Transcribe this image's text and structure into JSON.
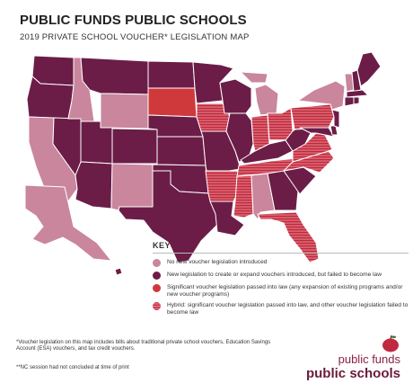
{
  "header": {
    "title": "PUBLIC FUNDS PUBLIC SCHOOLS",
    "subtitle": "2019 PRIVATE SCHOOL VOUCHER* LEGISLATION MAP"
  },
  "colors": {
    "none": "#c9869c",
    "failed": "#6b1d47",
    "passed": "#d0393b",
    "hybrid": "#c0283f",
    "border": "#ffffff"
  },
  "key": {
    "title": "KEY",
    "items": [
      {
        "category": "none",
        "label": "No new voucher legislation introduced"
      },
      {
        "category": "failed",
        "label": "New legislation to create or expand vouchers introduced, but failed to become law"
      },
      {
        "category": "passed",
        "label": "Significant voucher legislation passed into law (any expansion of existing programs and/or new voucher programs)"
      },
      {
        "category": "hybrid",
        "label": "Hybrid: significant voucher legislation passed into law, and other voucher legislation failed to become law"
      }
    ]
  },
  "states": {
    "none": [
      "CA",
      "ID",
      "WY",
      "NM",
      "MI",
      "AL",
      "AK",
      "NY",
      "VT"
    ],
    "passed": [
      "SD"
    ],
    "hybrid": [
      "IA",
      "IN",
      "OH",
      "PA",
      "AR",
      "MS",
      "TN",
      "FL",
      "VA",
      "NC"
    ],
    "failed": [
      "WA",
      "OR",
      "NV",
      "AZ",
      "UT",
      "MT",
      "CO",
      "ND",
      "NE",
      "KS",
      "OK",
      "TX",
      "MN",
      "WI",
      "IL",
      "MO",
      "LA",
      "KY",
      "GA",
      "SC",
      "WV",
      "MD",
      "DE",
      "NJ",
      "CT",
      "RI",
      "MA",
      "NH",
      "ME",
      "HI"
    ]
  },
  "footnotes": {
    "note1": "*Voucher legislation on this map includes bills about traditional private school vouchers, Education Savings Account (ESA) vouchers, and tax credit vouchers.",
    "note2": "**NC session had not concluded at time of print"
  },
  "logo": {
    "line1": "public funds",
    "line2": "public schools"
  }
}
